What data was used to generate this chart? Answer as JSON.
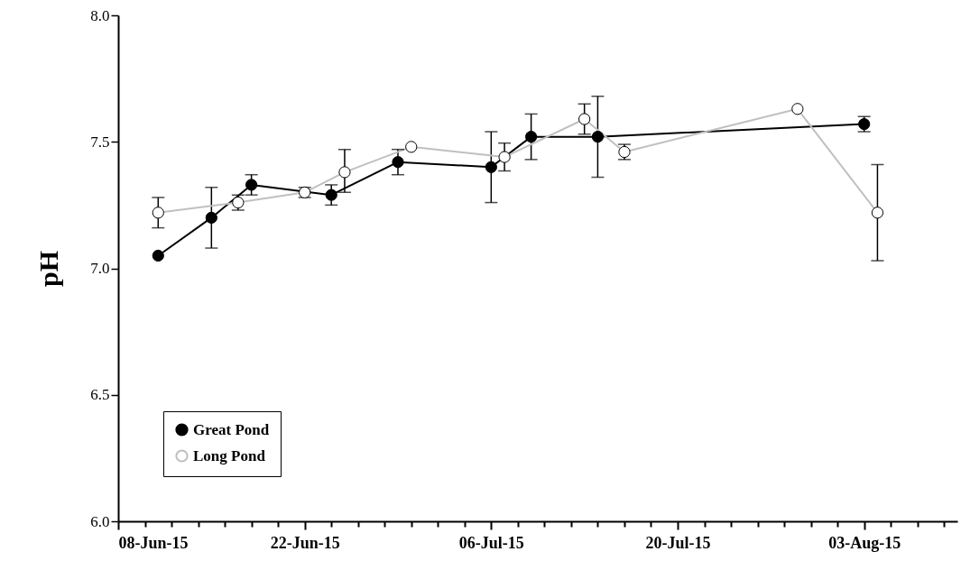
{
  "chart_data": {
    "type": "line",
    "ylabel": "pH",
    "x": [
      "--06-11",
      "--06-15",
      "--06-18",
      "--06-24",
      "--06-29",
      "--07-06",
      "--07-09",
      "--07-14",
      "--08-03"
    ],
    "series": [
      {
        "name": "Great Pond",
        "color": "#000000",
        "values": [
          7.05,
          7.2,
          7.33,
          7.29,
          7.42,
          7.4,
          7.52,
          7.52,
          7.57
        ],
        "errors": [
          null,
          0.12,
          0.04,
          0.04,
          0.05,
          0.14,
          0.09,
          0.16,
          0.03
        ]
      },
      {
        "name": "Long Pond",
        "color": "#c0c0c0",
        "x": [
          "--06-11",
          "--06-17",
          "--06-22",
          "--06-25",
          "--06-30",
          "--07-07",
          "--07-13",
          "--07-16",
          "--07-29",
          "--08-04"
        ],
        "values": [
          7.22,
          7.26,
          7.3,
          7.38,
          7.48,
          7.44,
          7.59,
          7.46,
          7.63,
          7.22
        ],
        "errors": [
          0.06,
          0.03,
          0.02,
          [
            7.3,
            7.47
          ],
          null,
          0.055,
          0.06,
          0.03,
          null,
          0.19
        ]
      }
    ],
    "xlim": [
      "--06-08",
      "--08-10"
    ],
    "xticks": [
      {
        "value": "--06-08",
        "label": "08-Jun-15"
      },
      {
        "value": "--06-10",
        "label": null
      },
      {
        "value": "--06-12",
        "label": null
      },
      {
        "value": "--06-14",
        "label": null
      },
      {
        "value": "--06-16",
        "label": null
      },
      {
        "value": "--06-18",
        "label": null
      },
      {
        "value": "--06-20",
        "label": null
      },
      {
        "value": "--06-22",
        "label": "22-Jun-15"
      },
      {
        "value": "--06-24",
        "label": null
      },
      {
        "value": "--06-26",
        "label": null
      },
      {
        "value": "--06-28",
        "label": null
      },
      {
        "value": "--06-30",
        "label": null
      },
      {
        "value": "--07-02",
        "label": null
      },
      {
        "value": "--07-04",
        "label": null
      },
      {
        "value": "--07-06",
        "label": "06-Jul-15"
      },
      {
        "value": "--07-08",
        "label": null
      },
      {
        "value": "--07-10",
        "label": null
      },
      {
        "value": "--07-12",
        "label": null
      },
      {
        "value": "--07-14",
        "label": null
      },
      {
        "value": "--07-16",
        "label": null
      },
      {
        "value": "--07-18",
        "label": null
      },
      {
        "value": "--07-20",
        "label": "20-Jul-15"
      },
      {
        "value": "--07-22",
        "label": null
      },
      {
        "value": "--07-24",
        "label": null
      },
      {
        "value": "--07-26",
        "label": null
      },
      {
        "value": "--07-28",
        "label": null
      },
      {
        "value": "--07-30",
        "label": null
      },
      {
        "value": "--08-01",
        "label": null
      },
      {
        "value": "--08-03",
        "label": "03-Aug-15"
      },
      {
        "value": "--08-05",
        "label": null
      },
      {
        "value": "--08-07",
        "label": null
      },
      {
        "value": "--08-09",
        "label": null
      }
    ],
    "ylim": [
      6,
      8
    ],
    "yticks": [
      {
        "value": 6,
        "label": "6.0"
      },
      {
        "value": 6.5,
        "label": "6.5"
      },
      {
        "value": 7,
        "label": "7.0"
      },
      {
        "value": 7.5,
        "label": "7.5"
      },
      {
        "value": 8,
        "label": "8.0"
      }
    ],
    "marker": "circle",
    "legend": "bottom left"
  }
}
